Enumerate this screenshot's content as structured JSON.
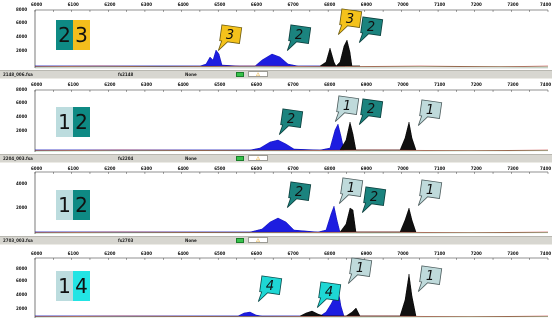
{
  "x_ticks": [
    "6000",
    "6050",
    "6100",
    "6150",
    "6200",
    "6250",
    "6300",
    "6350",
    "6400",
    "6450",
    "6500",
    "6550",
    "6600",
    "6650",
    "6700",
    "6750",
    "6800",
    "6850",
    "6900",
    "6950",
    "7000",
    "7050",
    "7100",
    "7150",
    "7200",
    "7250",
    "7300",
    "7350",
    "7400"
  ],
  "panels": [
    {
      "y_ticks": [
        "8000",
        "6000",
        "4000",
        "2000"
      ],
      "badge": [
        {
          "text": "2",
          "color": "#0e8a84"
        },
        {
          "text": "3",
          "color": "#f4be1c"
        }
      ],
      "tags": [
        {
          "text": "3",
          "color": "#f4c21b"
        },
        {
          "text": "2",
          "color": "#1b837e"
        },
        {
          "text": "3",
          "color": "#f4c21b"
        },
        {
          "text": "2",
          "color": "#1b837e"
        }
      ],
      "status": {
        "file": "2148_006.fsa",
        "code": "fs2148",
        "label": "None",
        "warn": "⚠"
      }
    },
    {
      "y_ticks": [
        "8000",
        "6000",
        "4000",
        "2000"
      ],
      "badge": [
        {
          "text": "1",
          "color": "#bcdcde"
        },
        {
          "text": "2",
          "color": "#0e8a84"
        }
      ],
      "tags": [
        {
          "text": "2",
          "color": "#1b837e"
        },
        {
          "text": "1",
          "color": "#bfdadb"
        },
        {
          "text": "2",
          "color": "#1b837e"
        },
        {
          "text": "1",
          "color": "#bfdadb"
        }
      ],
      "status": {
        "file": "2204_003.fsa",
        "code": "fs2204",
        "label": "None",
        "warn": "⚠"
      }
    },
    {
      "y_ticks": [
        "4000",
        "2000"
      ],
      "badge": [
        {
          "text": "1",
          "color": "#bcdcde"
        },
        {
          "text": "2",
          "color": "#0e8a84"
        }
      ],
      "tags": [
        {
          "text": "2",
          "color": "#1b837e"
        },
        {
          "text": "1",
          "color": "#bfdadb"
        },
        {
          "text": "2",
          "color": "#1b837e"
        },
        {
          "text": "1",
          "color": "#bfdadb"
        }
      ],
      "status": {
        "file": "2703_003.fsa",
        "code": "fs2703",
        "label": "None",
        "warn": "⚠"
      }
    },
    {
      "y_ticks": [
        "8000",
        "6000",
        "4000",
        "2000"
      ],
      "badge": [
        {
          "text": "1",
          "color": "#bcdcde"
        },
        {
          "text": "4",
          "color": "#22e4e4"
        }
      ],
      "tags": [
        {
          "text": "4",
          "color": "#1ed7d4"
        },
        {
          "text": "4",
          "color": "#1ed7d4"
        },
        {
          "text": "1",
          "color": "#bfdadb"
        },
        {
          "text": "1",
          "color": "#bfdadb"
        }
      ]
    }
  ]
}
